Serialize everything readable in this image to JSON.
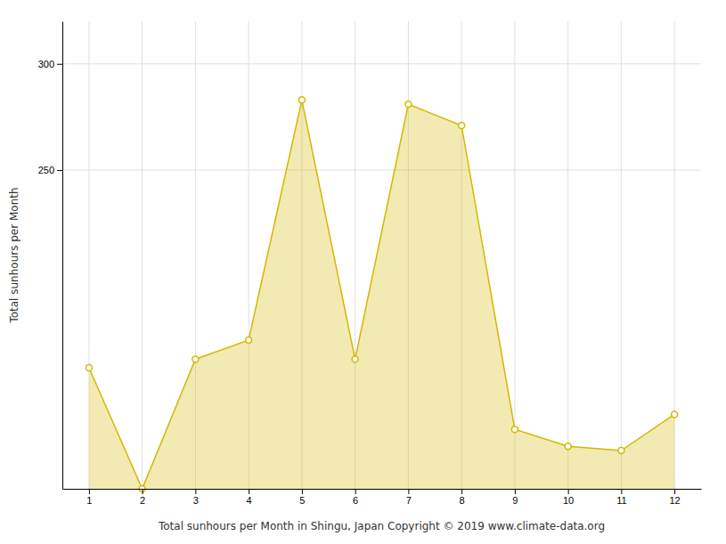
{
  "chart_data": {
    "type": "area",
    "x": [
      1,
      2,
      3,
      4,
      5,
      6,
      7,
      8,
      9,
      10,
      11,
      12
    ],
    "values": [
      157,
      100,
      161,
      170,
      283,
      161,
      281,
      271,
      128,
      120,
      118,
      135
    ],
    "color": "#D4B800",
    "marker": "circle-open",
    "xlabel": "Total sunhours per Month in Shingu, Japan Copyright © 2019 www.climate-data.org",
    "ylabel": "Total sunhours per Month",
    "xlim": [
      0.5,
      12.5
    ],
    "xticks": [
      1,
      2,
      3,
      4,
      5,
      6,
      7,
      8,
      9,
      10,
      11,
      12
    ],
    "ylim": [
      100,
      320
    ],
    "yticks": [
      250,
      300
    ],
    "grid": true
  }
}
